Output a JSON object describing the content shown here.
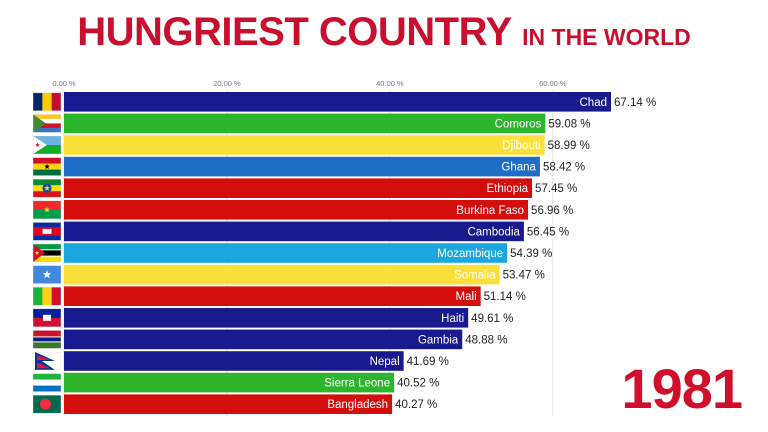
{
  "header": {
    "title": "HUNGRIEST COUNTRY",
    "subtitle": "IN THE WORLD"
  },
  "year": "1981",
  "chart_data": {
    "type": "bar",
    "orientation": "horizontal",
    "xlim": [
      0,
      67.14
    ],
    "x_ticks": [
      0,
      20,
      40,
      60
    ],
    "x_tick_labels": [
      "0.00 %",
      "20.00 %",
      "40.00 %",
      "60.00 %"
    ],
    "grid": true,
    "categories": [
      "Chad",
      "Comoros",
      "Djibouti",
      "Ghana",
      "Ethiopia",
      "Burkina Faso",
      "Cambodia",
      "Mozambique",
      "Somalia",
      "Mali",
      "Haiti",
      "Gambia",
      "Nepal",
      "Sierra Leone",
      "Bangladesh"
    ],
    "values": [
      67.14,
      59.08,
      58.99,
      58.42,
      57.45,
      56.96,
      56.45,
      54.39,
      53.47,
      51.14,
      49.61,
      48.88,
      41.69,
      40.52,
      40.27
    ],
    "value_labels": [
      "67.14 %",
      "59.08 %",
      "58.99 %",
      "58.42 %",
      "57.45 %",
      "56.96 %",
      "56.45 %",
      "54.39 %",
      "53.47 %",
      "51.14 %",
      "49.61 %",
      "48.88 %",
      "41.69 %",
      "40.52 %",
      "40.27 %"
    ],
    "bar_colors": [
      "#1a1a8f",
      "#2db52d",
      "#fce03a",
      "#1f6ec6",
      "#d40d0d",
      "#d40d0d",
      "#1a1a8f",
      "#1aa7e0",
      "#fce03a",
      "#d40d0d",
      "#1a1a8f",
      "#1a1a8f",
      "#1a1a8f",
      "#2db52d",
      "#d40d0d"
    ],
    "flags": [
      "chad-flag",
      "comoros-flag",
      "djibouti-flag",
      "ghana-flag",
      "ethiopia-flag",
      "burkina-faso-flag",
      "cambodia-flag",
      "mozambique-flag",
      "somalia-flag",
      "mali-flag",
      "haiti-flag",
      "gambia-flag",
      "nepal-flag",
      "sierra-leone-flag",
      "bangladesh-flag"
    ]
  }
}
